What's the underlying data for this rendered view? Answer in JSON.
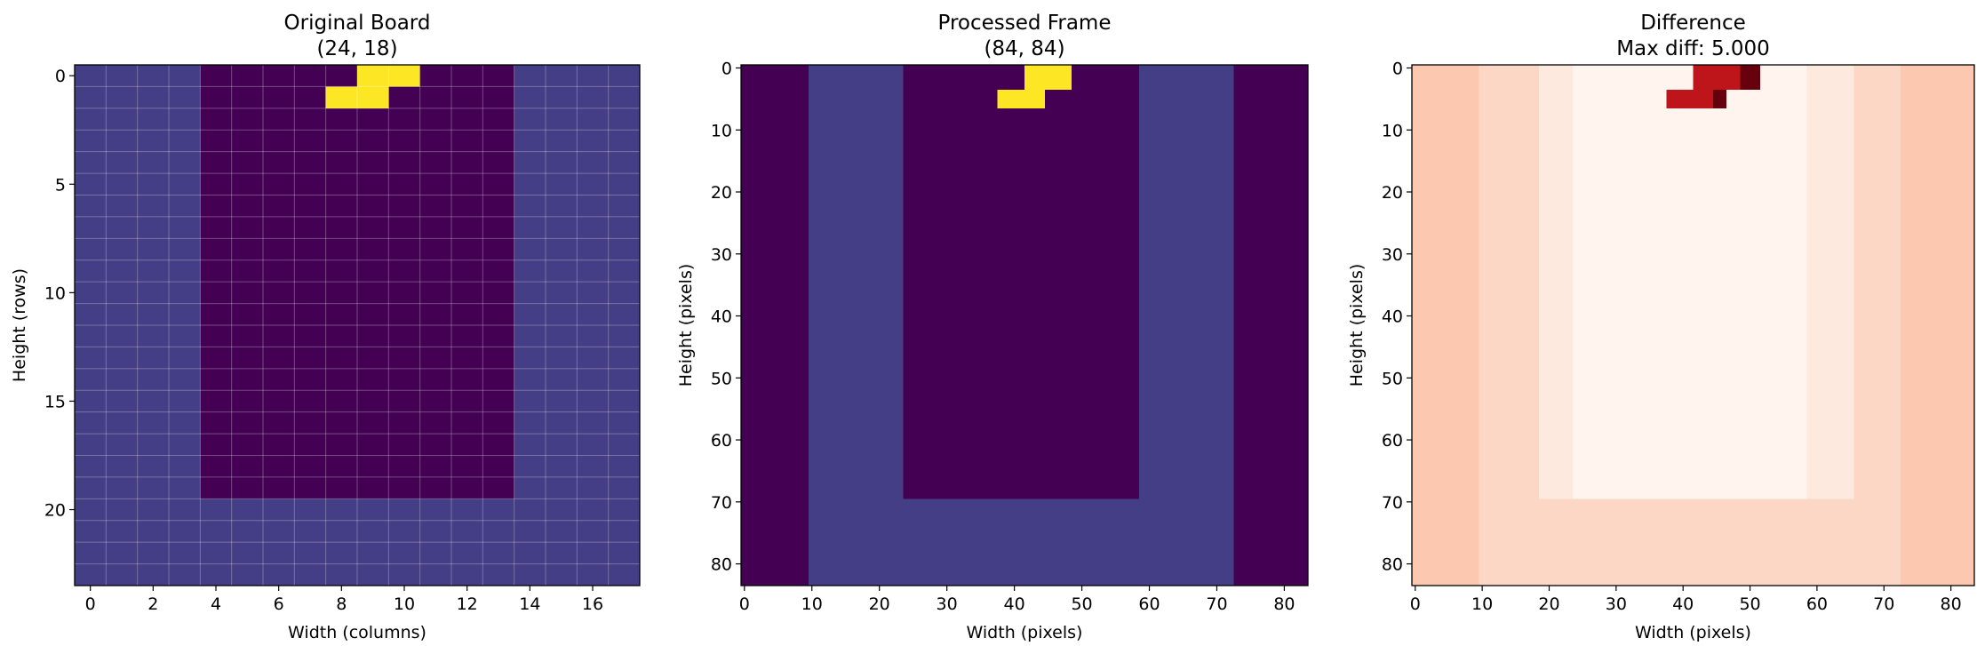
{
  "chart_data": [
    {
      "type": "heatmap",
      "title": "Original Board\n(24, 18)",
      "xlabel": "Width (columns)",
      "ylabel": "Height (rows)",
      "colormap": "viridis",
      "xlim": [
        -0.5,
        17.5
      ],
      "ylim": [
        23.5,
        -0.5
      ],
      "xticks": [
        0,
        2,
        4,
        6,
        8,
        10,
        12,
        14,
        16
      ],
      "yticks": [
        0,
        5,
        10,
        15,
        20
      ],
      "gridlines": true,
      "regions": [
        {
          "label": "wall",
          "x": [
            -0.5,
            17.5
          ],
          "y": [
            -0.5,
            23.5
          ],
          "color": "#433e85"
        },
        {
          "label": "well",
          "x": [
            3.5,
            13.5
          ],
          "y": [
            -0.5,
            19.5
          ],
          "color": "#440154"
        },
        {
          "label": "piece",
          "x": [
            8.5,
            10.5
          ],
          "y": [
            -0.5,
            0.5
          ],
          "color": "#fde725"
        },
        {
          "label": "piece",
          "x": [
            7.5,
            9.5
          ],
          "y": [
            0.5,
            1.5
          ],
          "color": "#fde725"
        }
      ]
    },
    {
      "type": "heatmap",
      "title": "Processed Frame\n(84, 84)",
      "xlabel": "Width (pixels)",
      "ylabel": "Height (pixels)",
      "colormap": "viridis",
      "xlim": [
        -0.5,
        83.5
      ],
      "ylim": [
        83.5,
        -0.5
      ],
      "xticks": [
        0,
        10,
        20,
        30,
        40,
        50,
        60,
        70,
        80
      ],
      "yticks": [
        0,
        10,
        20,
        30,
        40,
        50,
        60,
        70,
        80
      ],
      "gridlines": false,
      "regions": [
        {
          "label": "background",
          "x": [
            -0.5,
            83.5
          ],
          "y": [
            -0.5,
            83.5
          ],
          "color": "#440154"
        },
        {
          "label": "wall",
          "x": [
            9.5,
            72.5
          ],
          "y": [
            -0.5,
            83.5
          ],
          "color": "#433e85"
        },
        {
          "label": "well",
          "x": [
            23.5,
            58.5
          ],
          "y": [
            -0.5,
            69.5
          ],
          "color": "#440154"
        },
        {
          "label": "piece",
          "x": [
            41.5,
            48.5
          ],
          "y": [
            -0.5,
            3.5
          ],
          "color": "#fde725"
        },
        {
          "label": "piece",
          "x": [
            37.5,
            44.5
          ],
          "y": [
            3.5,
            6.5
          ],
          "color": "#fde725"
        }
      ]
    },
    {
      "type": "heatmap",
      "title": "Difference\nMax diff: 5.000",
      "xlabel": "Width (pixels)",
      "ylabel": "Height (pixels)",
      "colormap": "Reds",
      "xlim": [
        -0.5,
        83.5
      ],
      "ylim": [
        83.5,
        -0.5
      ],
      "xticks": [
        0,
        10,
        20,
        30,
        40,
        50,
        60,
        70,
        80
      ],
      "yticks": [
        0,
        10,
        20,
        30,
        40,
        50,
        60,
        70,
        80
      ],
      "gridlines": false,
      "max_diff": 5.0,
      "regions": [
        {
          "label": "outer",
          "x": [
            -0.5,
            83.5
          ],
          "y": [
            -0.5,
            83.5
          ],
          "color": "#fcc8b0"
        },
        {
          "label": "wall",
          "x": [
            9.5,
            72.5
          ],
          "y": [
            -0.5,
            83.5
          ],
          "color": "#fdd7c6"
        },
        {
          "label": "inner",
          "x": [
            18.5,
            65.5
          ],
          "y": [
            -0.5,
            69.5
          ],
          "color": "#fee9df"
        },
        {
          "label": "center",
          "x": [
            23.5,
            58.5
          ],
          "y": [
            -0.5,
            69.5
          ],
          "color": "#fff4ee"
        },
        {
          "label": "piece-diff",
          "x": [
            41.5,
            48.5
          ],
          "y": [
            -0.5,
            3.5
          ],
          "color": "#bd151a"
        },
        {
          "label": "piece-diff-max",
          "x": [
            48.5,
            51.5
          ],
          "y": [
            -0.5,
            3.5
          ],
          "color": "#67000d"
        },
        {
          "label": "piece-diff",
          "x": [
            37.5,
            44.5
          ],
          "y": [
            3.5,
            6.5
          ],
          "color": "#bd151a"
        },
        {
          "label": "piece-diff-max",
          "x": [
            44.5,
            46.5
          ],
          "y": [
            3.5,
            6.5
          ],
          "color": "#67000d"
        }
      ]
    }
  ]
}
